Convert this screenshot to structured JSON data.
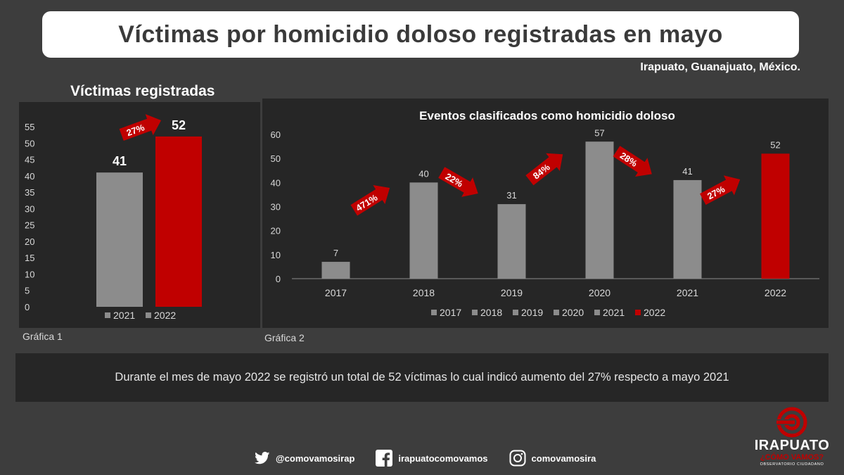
{
  "header": {
    "title": "Víctimas por homicidio doloso registradas en mayo",
    "location": "Irapuato, Guanajuato, México."
  },
  "left_section": {
    "heading": "Víctimas registradas",
    "caption": "Gráfica 1"
  },
  "right_section": {
    "caption": "Gráfica 2"
  },
  "summary": "Durante el mes de mayo 2022 se registró un total de 52 víctimas lo cual indicó aumento del 27% respecto a mayo 2021",
  "social": {
    "twitter": "@comovamosirap",
    "facebook": "irapuatocomovamos",
    "instagram": "comovamosira"
  },
  "logo": {
    "line1": "IRAPUATO",
    "line2": "¿CÓMO VAMOS?",
    "line3": "OBSERVATORIO CIUDADANO"
  },
  "colors": {
    "gray_bar": "#8c8c8c",
    "red_bar": "#c00000",
    "panel": "#262626",
    "background": "#3d3d3d"
  },
  "chart_data": [
    {
      "type": "bar",
      "categories": [
        "2021",
        "2022"
      ],
      "values": [
        41,
        52
      ],
      "colors": [
        "#8c8c8c",
        "#c00000"
      ],
      "ylim": [
        0,
        55
      ],
      "yticks": [
        0,
        5,
        10,
        15,
        20,
        25,
        30,
        35,
        40,
        45,
        50,
        55
      ],
      "legend": [
        "2021",
        "2022"
      ],
      "legend_position": "bottom",
      "annotations": [
        {
          "text": "27%",
          "from": "2021",
          "to": "2022"
        }
      ]
    },
    {
      "type": "bar",
      "title": "Eventos clasificados como homicidio doloso",
      "categories": [
        "2017",
        "2018",
        "2019",
        "2020",
        "2021",
        "2022"
      ],
      "values": [
        7,
        40,
        31,
        57,
        41,
        52
      ],
      "colors": [
        "#8c8c8c",
        "#8c8c8c",
        "#8c8c8c",
        "#8c8c8c",
        "#8c8c8c",
        "#c00000"
      ],
      "ylim": [
        0,
        60
      ],
      "yticks": [
        0,
        10,
        20,
        30,
        40,
        50,
        60
      ],
      "legend": [
        "2017",
        "2018",
        "2019",
        "2020",
        "2021",
        "2022"
      ],
      "legend_position": "bottom",
      "annotations": [
        {
          "text": "471%",
          "from": "2017",
          "to": "2018",
          "direction": "up"
        },
        {
          "text": "22%",
          "from": "2018",
          "to": "2019",
          "direction": "down"
        },
        {
          "text": "84%",
          "from": "2019",
          "to": "2020",
          "direction": "up"
        },
        {
          "text": "28%",
          "from": "2020",
          "to": "2021",
          "direction": "down"
        },
        {
          "text": "27%",
          "from": "2021",
          "to": "2022",
          "direction": "up"
        }
      ]
    }
  ]
}
